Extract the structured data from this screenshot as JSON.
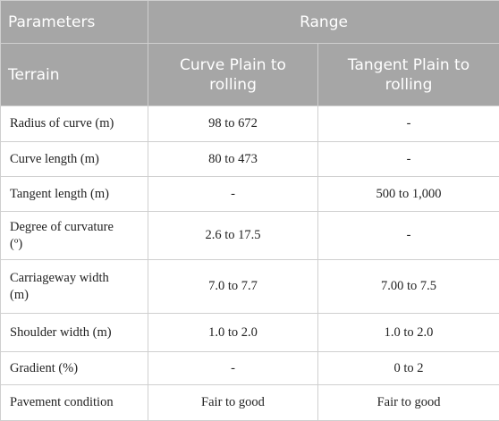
{
  "table": {
    "header": [
      [
        "Parameters",
        "Range"
      ],
      [
        "Terrain",
        "Curve Plain to rolling",
        "Tangent Plain to rolling"
      ]
    ],
    "rows": [
      [
        "Radius of curve (m)",
        "98 to 672",
        "-"
      ],
      [
        "Curve length (m)",
        "80 to 473",
        "-"
      ],
      [
        "Tangent length (m)",
        "-",
        "500 to 1,000"
      ],
      [
        "Degree of curvature (º)",
        "2.6 to 17.5",
        "-"
      ],
      [
        "Carriageway width (m)",
        "7.0 to 7.7",
        "7.00 to 7.5"
      ],
      [
        "Shoulder width (m)",
        "1.0 to 2.0",
        "1.0 to 2.0"
      ],
      [
        "Gradient (%)",
        "-",
        "0 to 2"
      ],
      [
        "Pavement condition",
        "Fair to good",
        "Fair to good"
      ]
    ]
  }
}
